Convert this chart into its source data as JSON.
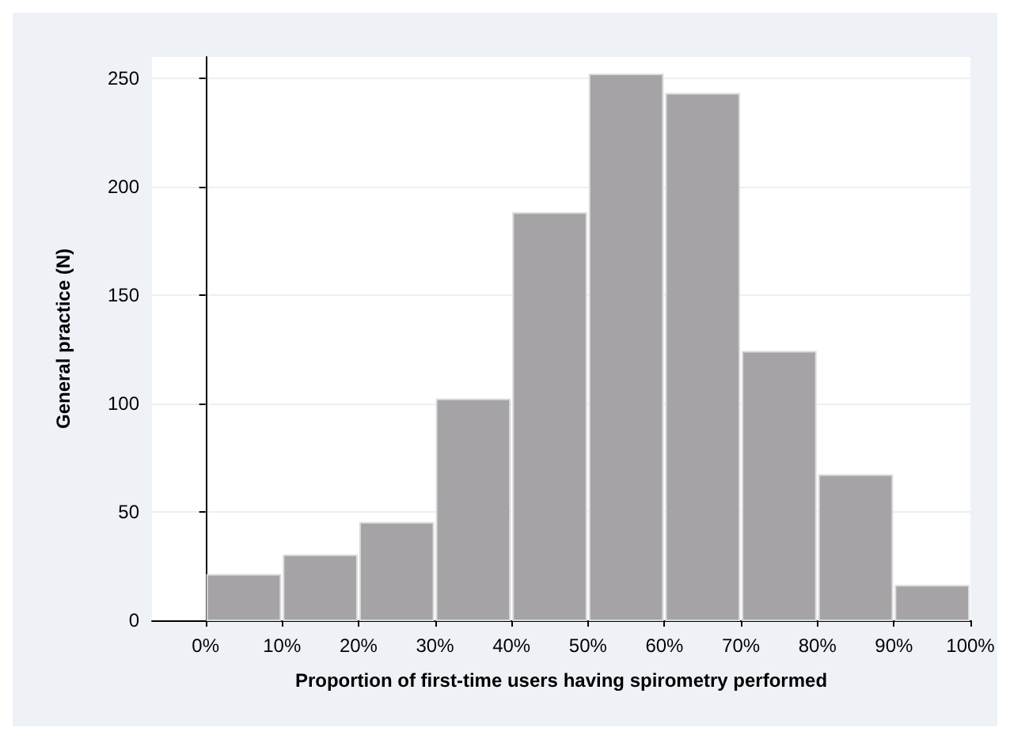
{
  "chart_data": {
    "type": "histogram",
    "xlabel": "Proportion of first-time users having spirometry performed",
    "ylabel": "General practice (N)",
    "bins": [
      0,
      10,
      20,
      30,
      40,
      50,
      60,
      70,
      80,
      90,
      100
    ],
    "values": [
      21,
      30,
      45,
      102,
      188,
      252,
      243,
      124,
      67,
      16
    ],
    "color": "#a5a3a6",
    "xlim": [
      -7,
      100
    ],
    "xticks": [
      {
        "value": 0,
        "label": "0%"
      },
      {
        "value": 10,
        "label": "10%"
      },
      {
        "value": 20,
        "label": "20%"
      },
      {
        "value": 30,
        "label": "30%"
      },
      {
        "value": 40,
        "label": "40%"
      },
      {
        "value": 50,
        "label": "50%"
      },
      {
        "value": 60,
        "label": "60%"
      },
      {
        "value": 70,
        "label": "70%"
      },
      {
        "value": 80,
        "label": "80%"
      },
      {
        "value": 90,
        "label": "90%"
      },
      {
        "value": 100,
        "label": "100%"
      }
    ],
    "ylim": [
      0,
      260
    ],
    "yticks": [
      0,
      50,
      100,
      150,
      200,
      250
    ],
    "grid": "y"
  }
}
